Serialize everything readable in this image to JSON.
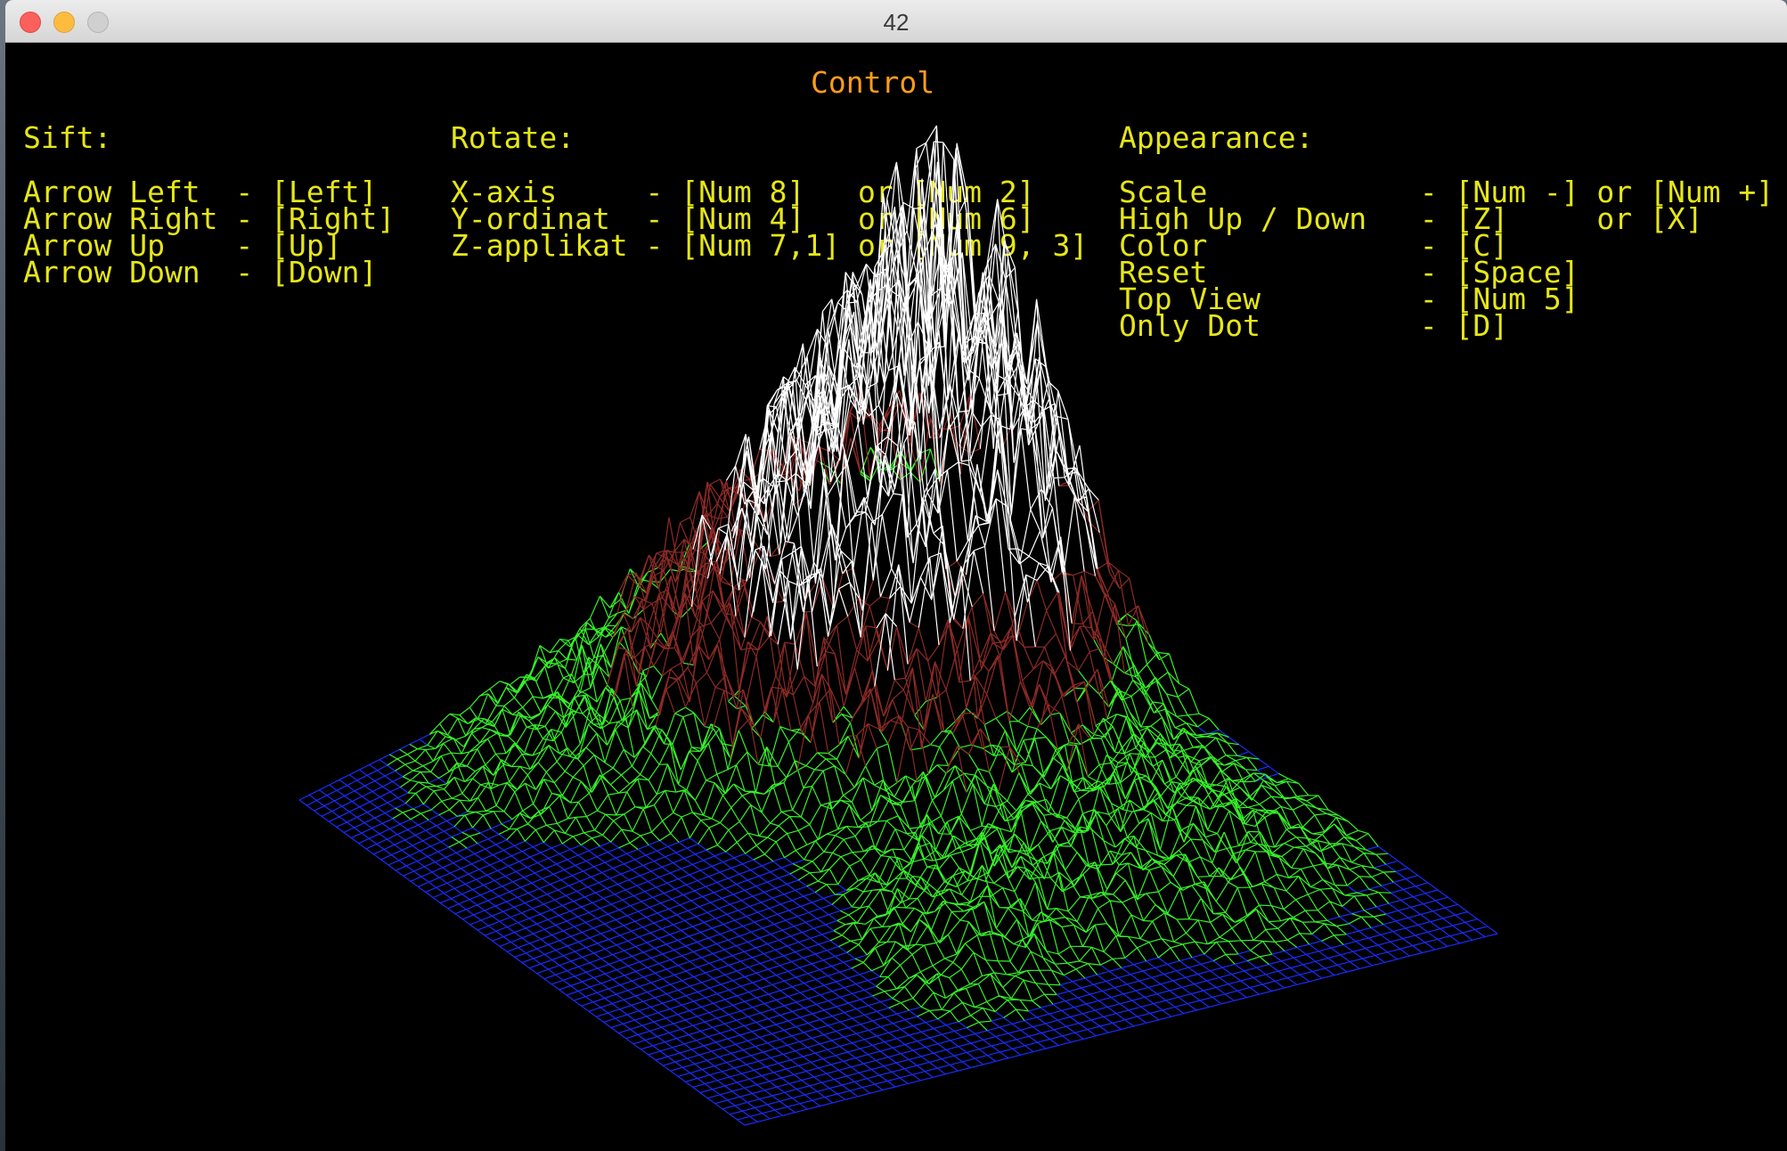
{
  "window": {
    "title": "42"
  },
  "control": {
    "heading": "Control",
    "sift": {
      "title": "Sift:",
      "lines": [
        "Arrow Left  - [Left]",
        "Arrow Right - [Right]",
        "Arrow Up    - [Up]",
        "Arrow Down  - [Down]"
      ]
    },
    "rotate": {
      "title": "Rotate:",
      "lines": [
        "X-axis     - [Num 8]   or [Num 2]",
        "Y-ordinat  - [Num 4]   or [Num 6]",
        "Z-applikat - [Num 7,1] or [Num 9, 3]"
      ]
    },
    "appearance": {
      "title": "Appearance:",
      "lines": [
        "Scale            - [Num -] or [Num +]",
        "High Up / Down   - [Z]     or [X]",
        "Color            - [C]",
        "Reset            - [Space]",
        "Top View         - [Num 5]",
        "Only Dot         - [D]"
      ]
    }
  },
  "colors": {
    "heading": "#ff9c1a",
    "text": "#e6e619",
    "water": "#1a2cff",
    "grass": "#36f02a",
    "rock": "#8c2a26",
    "snow": "#ffffff"
  }
}
